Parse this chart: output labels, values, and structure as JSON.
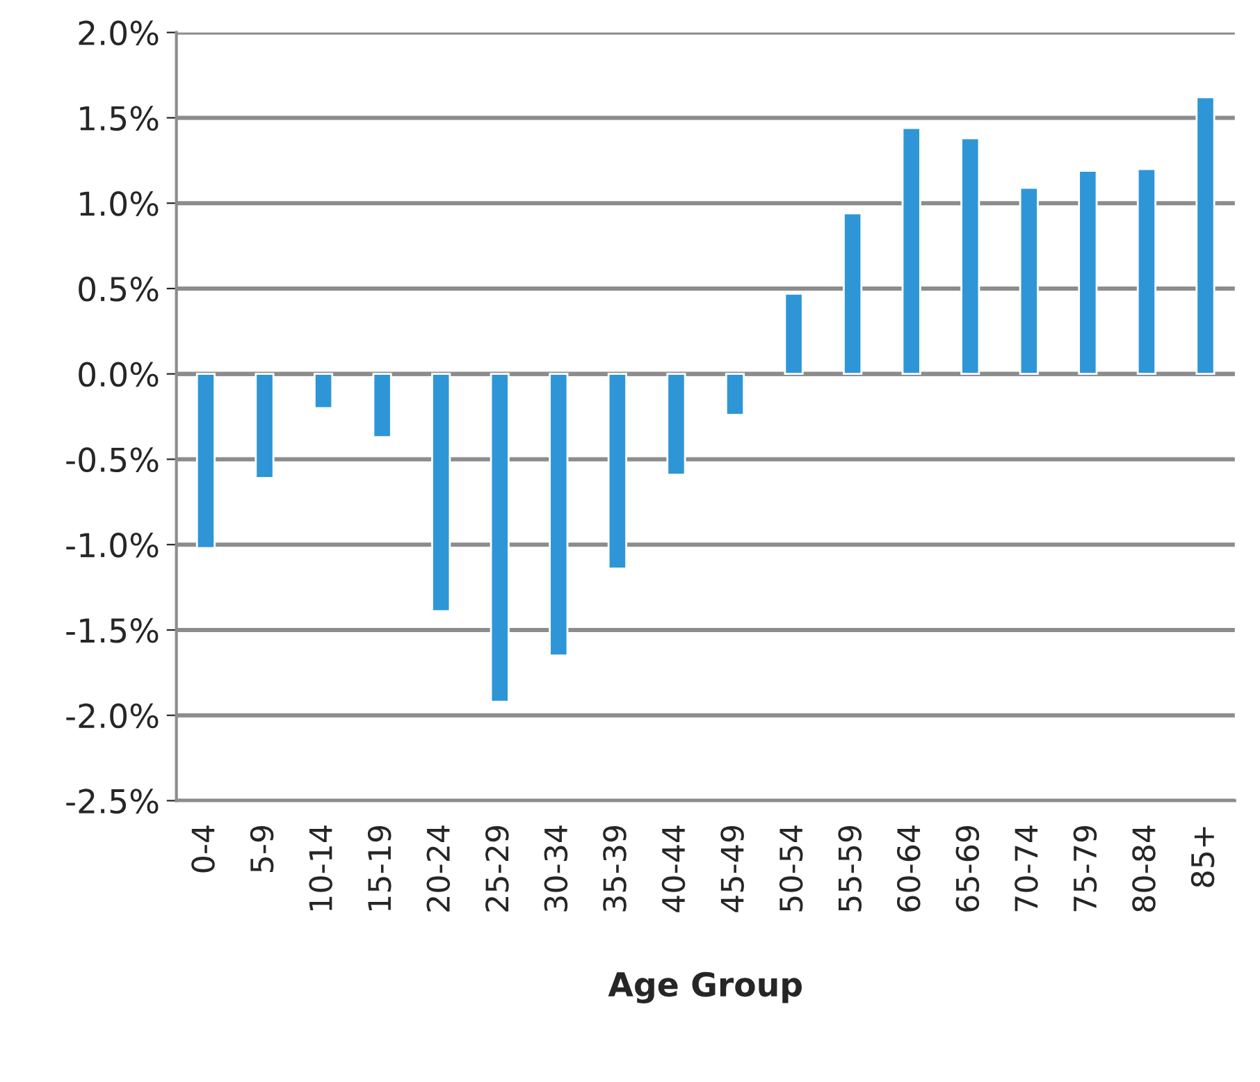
{
  "chart_data": {
    "type": "bar",
    "xlabel": "Age Group",
    "categories": [
      "0-4",
      "5-9",
      "10-14",
      "15-19",
      "20-24",
      "25-29",
      "30-34",
      "35-39",
      "40-44",
      "45-49",
      "50-54",
      "55-59",
      "60-64",
      "65-69",
      "70-74",
      "75-79",
      "80-84",
      "85+"
    ],
    "values": [
      -1.02,
      -0.61,
      -0.2,
      -0.37,
      -1.39,
      -1.92,
      -1.65,
      -1.14,
      -0.59,
      -0.24,
      0.47,
      0.94,
      1.44,
      1.38,
      1.09,
      1.19,
      1.2,
      1.62
    ],
    "color": "#2e96d6",
    "ylim": [
      -2.5,
      2.0
    ],
    "yticks": [
      {
        "value": -2.5,
        "label": "-2.5%"
      },
      {
        "value": -2.0,
        "label": "-2.0%"
      },
      {
        "value": -1.5,
        "label": "-1.5%"
      },
      {
        "value": -1.0,
        "label": "-1.0%"
      },
      {
        "value": -0.5,
        "label": "-0.5%"
      },
      {
        "value": 0.0,
        "label": "0.0%"
      },
      {
        "value": 0.5,
        "label": "0.5%"
      },
      {
        "value": 1.0,
        "label": "1.0%"
      },
      {
        "value": 1.5,
        "label": "1.5%"
      },
      {
        "value": 2.0,
        "label": "2.0%"
      }
    ],
    "grid": "y",
    "legend": false
  }
}
